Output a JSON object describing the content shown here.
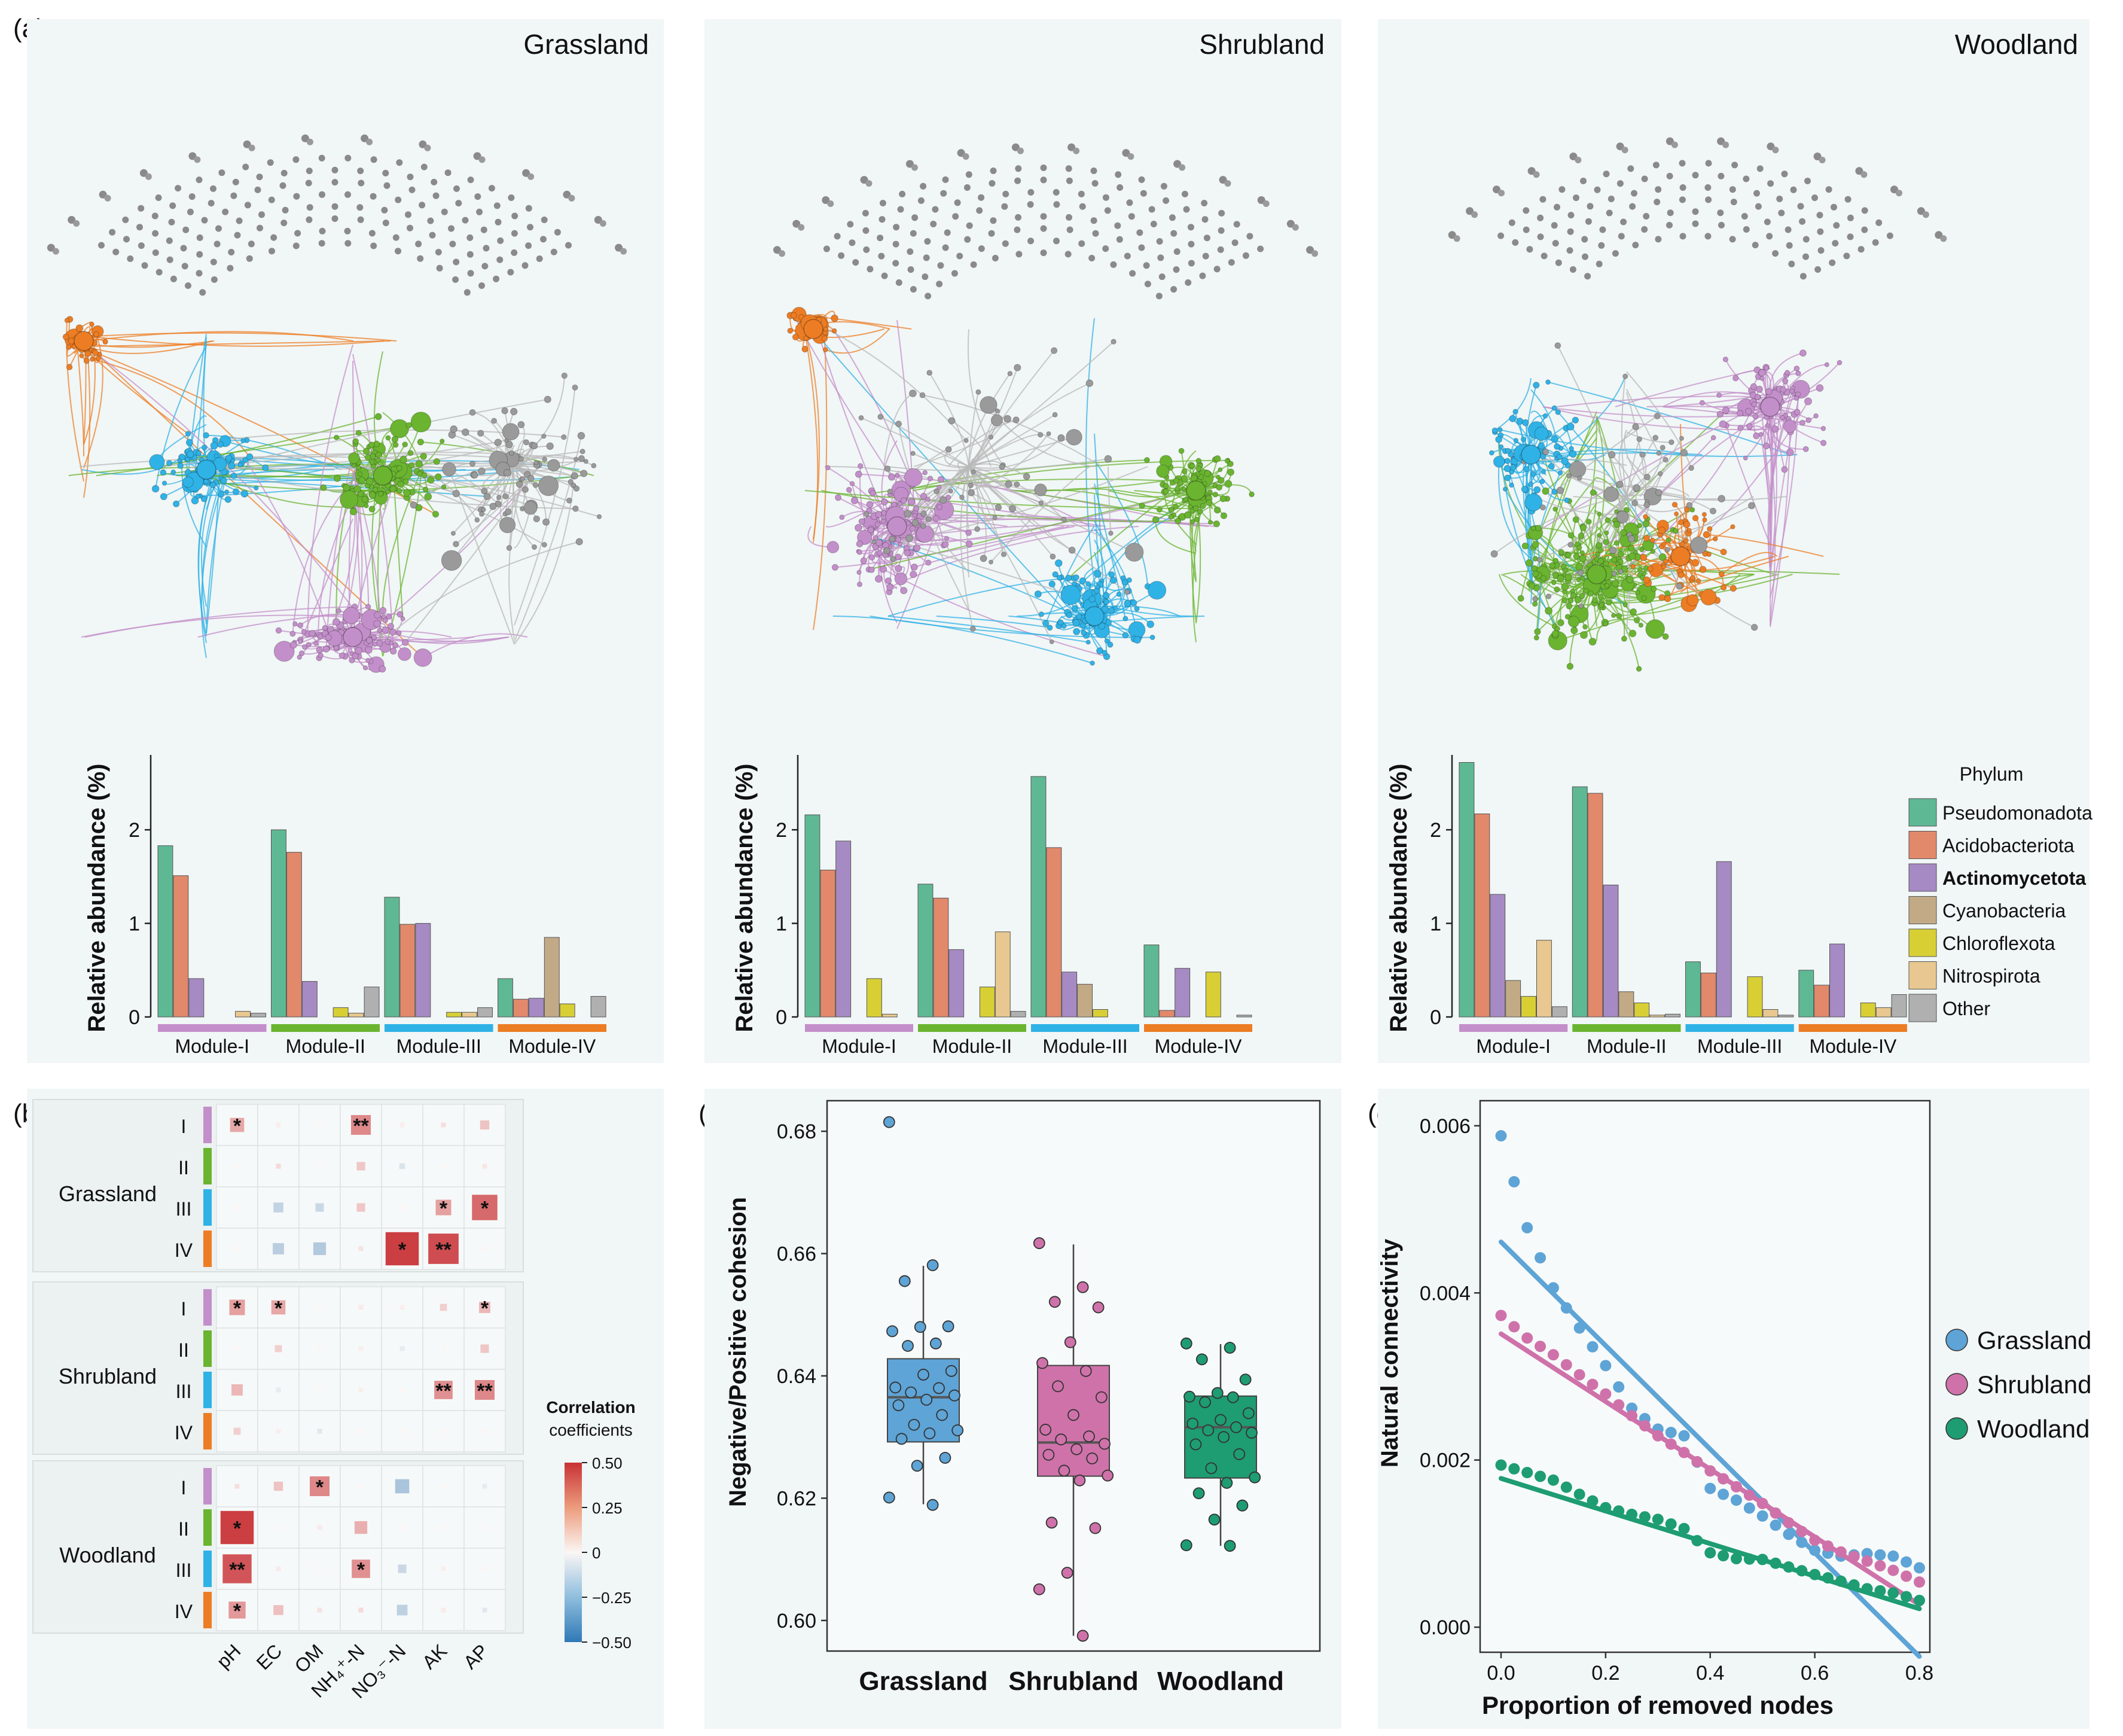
{
  "panels": {
    "a": "(a)",
    "b": "(b)",
    "c": "(c)",
    "d": "(d)"
  },
  "colors": {
    "module": [
      "#c38fca",
      "#6ab430",
      "#2fb2e6",
      "#ec7d24"
    ],
    "panel_bg": "#f1f6f6",
    "other_node": "#9a9a9a",
    "div_pos": "#c83236",
    "div_neg": "#2f79b6"
  },
  "chart_data": [
    {
      "id": "a-networks-and-module-composition",
      "type": "bar",
      "networks": [
        {
          "title": "Grassland"
        },
        {
          "title": "Shrubland"
        },
        {
          "title": "Woodland"
        }
      ],
      "ylabel": "Relative abundance (%)",
      "yticks": [
        "0",
        "1",
        "2"
      ],
      "ylim": [
        0,
        2.8
      ],
      "modules": [
        "Module-I",
        "Module-II",
        "Module-III",
        "Module-IV"
      ],
      "legend_title": "Phylum",
      "phyla": [
        {
          "name": "Pseudomonadota",
          "color": "#5fb894"
        },
        {
          "name": "Acidobacteriota",
          "color": "#e1896a"
        },
        {
          "name": "Actinomycetota",
          "color": "#a68ac4"
        },
        {
          "name": "Cyanobacteria",
          "color": "#c3aa86"
        },
        {
          "name": "Chloroflexota",
          "color": "#d8cf35"
        },
        {
          "name": "Nitrospirota",
          "color": "#e8c890"
        },
        {
          "name": "Other",
          "color": "#b0b0b0"
        }
      ],
      "values": {
        "Grassland": [
          [
            1.83,
            1.51,
            0.41,
            0.0,
            0.0,
            0.06,
            0.04
          ],
          [
            2.0,
            1.76,
            0.38,
            0.0,
            0.1,
            0.04,
            0.32
          ],
          [
            1.28,
            0.99,
            1.0,
            0.0,
            0.05,
            0.05,
            0.1
          ],
          [
            0.41,
            0.19,
            0.2,
            0.85,
            0.14,
            0.0,
            0.22
          ]
        ],
        "Shrubland": [
          [
            2.16,
            1.57,
            1.88,
            0.0,
            0.41,
            0.03,
            0.0
          ],
          [
            1.42,
            1.27,
            0.72,
            0.0,
            0.32,
            0.91,
            0.06
          ],
          [
            2.57,
            1.81,
            0.48,
            0.35,
            0.08,
            0.0,
            0.0
          ],
          [
            0.77,
            0.07,
            0.52,
            0.0,
            0.48,
            0.0,
            0.02
          ]
        ],
        "Woodland": [
          [
            2.72,
            2.17,
            1.31,
            0.39,
            0.22,
            0.82,
            0.11
          ],
          [
            2.46,
            2.39,
            1.41,
            0.27,
            0.15,
            0.02,
            0.03
          ],
          [
            0.59,
            0.47,
            1.66,
            0.0,
            0.43,
            0.08,
            0.02
          ],
          [
            0.5,
            0.34,
            0.78,
            0.0,
            0.15,
            0.1,
            0.24
          ]
        ]
      }
    },
    {
      "id": "b-heatmap",
      "type": "heatmap",
      "x": [
        "pH",
        "EC",
        "OM",
        "NH₄⁺-N",
        "NO₃⁻-N",
        "AK",
        "AP"
      ],
      "groups": [
        "Grassland",
        "Shrubland",
        "Woodland"
      ],
      "rows": [
        "I",
        "II",
        "III",
        "IV"
      ],
      "colorbar_title": [
        "Correlation",
        "coefficients"
      ],
      "colorbar_ticks": [
        "0.50",
        "0.25",
        "0",
        "−0.25",
        "−0.50"
      ],
      "colorbar_range": [
        -0.5,
        0.5
      ],
      "values": [
        [
          [
            0.2,
            0.02,
            0.0,
            0.28,
            0.02,
            0.06,
            0.13
          ],
          [
            0.0,
            0.07,
            0.0,
            0.12,
            -0.08,
            0.0,
            0.04
          ],
          [
            0.0,
            -0.14,
            -0.12,
            0.12,
            0.0,
            0.22,
            0.36
          ],
          [
            0.0,
            -0.16,
            -0.18,
            0.05,
            0.47,
            0.43,
            0.0
          ]
        ],
        [
          [
            0.22,
            0.2,
            0.0,
            0.03,
            0.02,
            0.1,
            0.16
          ],
          [
            0.0,
            0.1,
            0.0,
            0.02,
            -0.05,
            0.0,
            0.12
          ],
          [
            0.16,
            -0.05,
            0.0,
            0.02,
            0.0,
            0.26,
            0.28
          ],
          [
            0.1,
            0.02,
            -0.06,
            0.0,
            0.0,
            0.0,
            0.0
          ]
        ],
        [
          [
            0.06,
            0.13,
            0.28,
            0.0,
            -0.2,
            0.0,
            -0.05
          ],
          [
            0.47,
            0.0,
            0.03,
            0.18,
            0.0,
            0.0,
            0.0
          ],
          [
            0.41,
            0.03,
            0.0,
            0.26,
            -0.12,
            0.02,
            0.0
          ],
          [
            0.24,
            0.14,
            0.05,
            0.07,
            -0.15,
            0.03,
            -0.06
          ]
        ]
      ],
      "stars": [
        [
          [
            "*",
            "",
            "",
            "**",
            "",
            "",
            ""
          ],
          [
            "",
            "",
            "",
            "",
            "",
            "",
            ""
          ],
          [
            "",
            "",
            "",
            "",
            "",
            "*",
            "*"
          ],
          [
            "",
            "",
            "",
            "",
            "*",
            "**",
            ""
          ]
        ],
        [
          [
            "*",
            "*",
            "",
            "",
            "",
            "",
            "*"
          ],
          [
            "",
            "",
            "",
            "",
            "",
            "",
            ""
          ],
          [
            "",
            "",
            "",
            "",
            "",
            "**",
            "**"
          ],
          [
            "",
            "",
            "",
            "",
            "",
            "",
            ""
          ]
        ],
        [
          [
            "",
            "",
            "*",
            "",
            "",
            "",
            ""
          ],
          [
            "*",
            "",
            "",
            "",
            "",
            "",
            ""
          ],
          [
            "**",
            "",
            "",
            "*",
            "",
            "",
            ""
          ],
          [
            "*",
            "",
            "",
            "",
            "",
            "",
            ""
          ]
        ]
      ]
    },
    {
      "id": "c-boxplot",
      "type": "box",
      "ylabel": "Negative/Positive cohesion",
      "ylim": [
        0.595,
        0.685
      ],
      "yticks": [
        "0.60",
        "0.62",
        "0.64",
        "0.66",
        "0.68"
      ],
      "categories": [
        "Grassland",
        "Shrubland",
        "Woodland"
      ],
      "fill": [
        "#5ea4d6",
        "#cf72aa",
        "#1e9c72"
      ],
      "box": [
        {
          "q1": 0.6292,
          "median": 0.6365,
          "q3": 0.6428,
          "lo": 0.619,
          "hi": 0.658
        },
        {
          "q1": 0.6236,
          "median": 0.6291,
          "q3": 0.6417,
          "lo": 0.5975,
          "hi": 0.6615
        },
        {
          "q1": 0.6233,
          "median": 0.6316,
          "q3": 0.6367,
          "lo": 0.6122,
          "hi": 0.6452
        }
      ],
      "points": [
        [
          0.6815,
          0.6581,
          0.6555,
          0.6481,
          0.648,
          0.6473,
          0.6453,
          0.6449,
          0.6408,
          0.6402,
          0.6381,
          0.638,
          0.6373,
          0.6368,
          0.6361,
          0.6352,
          0.6336,
          0.632,
          0.6311,
          0.6306,
          0.6297,
          0.6266,
          0.6253,
          0.6201,
          0.6189
        ],
        [
          0.6617,
          0.6545,
          0.6521,
          0.6512,
          0.6455,
          0.6421,
          0.6408,
          0.6383,
          0.6365,
          0.6336,
          0.6312,
          0.6301,
          0.6296,
          0.6289,
          0.628,
          0.6271,
          0.6265,
          0.6245,
          0.6237,
          0.6229,
          0.616,
          0.6151,
          0.6078,
          0.6051,
          0.5975
        ],
        [
          0.6453,
          0.6446,
          0.6427,
          0.6394,
          0.6372,
          0.6366,
          0.6365,
          0.6357,
          0.6339,
          0.6328,
          0.6322,
          0.6316,
          0.6311,
          0.6307,
          0.63,
          0.6288,
          0.6272,
          0.6249,
          0.6234,
          0.6225,
          0.6208,
          0.6188,
          0.6165,
          0.6123,
          0.6122
        ]
      ]
    },
    {
      "id": "d-natural-connectivity",
      "type": "scatter",
      "xlabel": "Proportion of removed nodes",
      "ylabel": "Natural connectivity",
      "xlim": [
        -0.04,
        0.82
      ],
      "ylim": [
        -0.0003,
        0.0063
      ],
      "xticks": [
        "0.0",
        "0.2",
        "0.4",
        "0.6",
        "0.8"
      ],
      "yticks": [
        "0.000",
        "0.002",
        "0.004",
        "0.006"
      ],
      "x": [
        0.0,
        0.05,
        0.1,
        0.15,
        0.2,
        0.25,
        0.3,
        0.35,
        0.4,
        0.45,
        0.5,
        0.55,
        0.6,
        0.65,
        0.7,
        0.75,
        0.8
      ],
      "series": [
        {
          "name": "Grassland",
          "color": "#5ea4d6",
          "values": [
            0.00588,
            0.00478,
            0.00406,
            0.00358,
            0.00313,
            0.00262,
            0.00237,
            0.00229,
            0.00166,
            0.00152,
            0.00133,
            0.00111,
            0.00092,
            0.00085,
            0.00088,
            0.00085,
            0.00071
          ],
          "fit": [
            0.00461,
            -0.0062
          ]
        },
        {
          "name": "Shrubland",
          "color": "#cf72aa",
          "values": [
            0.00373,
            0.00346,
            0.00326,
            0.00302,
            0.00279,
            0.00253,
            0.00229,
            0.00209,
            0.00187,
            0.00168,
            0.00148,
            0.00125,
            0.00104,
            0.0009,
            0.00079,
            0.00068,
            0.00054
          ],
          "fit": [
            0.00351,
            -0.00405
          ]
        },
        {
          "name": "Woodland",
          "color": "#1e9c72",
          "values": [
            0.00194,
            0.00185,
            0.00176,
            0.00159,
            0.00143,
            0.00135,
            0.00129,
            0.00118,
            0.00089,
            0.00082,
            0.00081,
            0.00072,
            0.00063,
            0.00055,
            0.00046,
            0.00041,
            0.00032
          ],
          "fit": [
            0.00178,
            -0.00195
          ]
        }
      ]
    }
  ]
}
